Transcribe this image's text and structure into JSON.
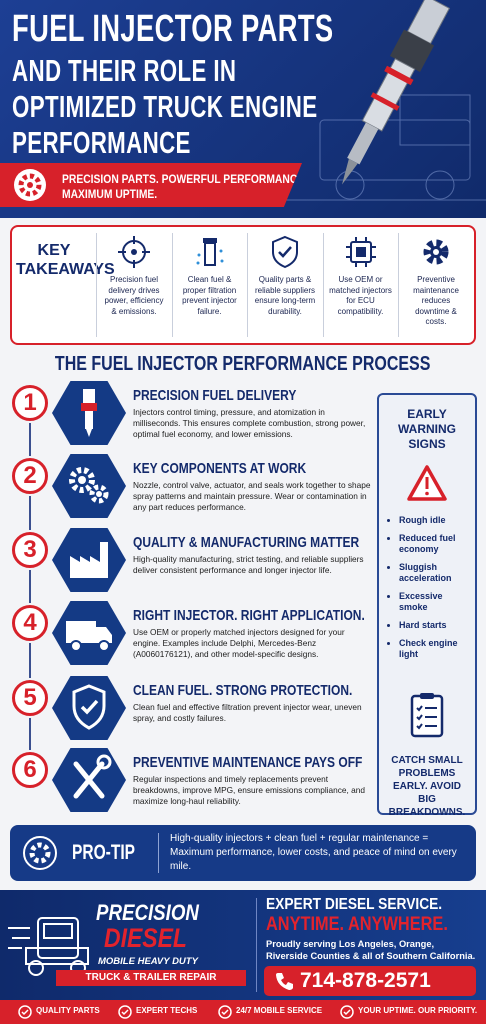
{
  "header": {
    "title_lines": [
      "FUEL INJECTOR PARTS",
      "AND THEIR ROLE IN",
      "OPTIMIZED TRUCK ENGINE",
      "PERFORMANCE"
    ],
    "tagline_lines": [
      "PRECISION PARTS. POWERFUL PERFORMANCE.",
      "MAXIMUM UPTIME."
    ]
  },
  "takeaways": {
    "title": "KEY TAKEAWAYS",
    "items": [
      "Precision fuel delivery drives power, efficiency & emissions.",
      "Clean fuel & proper filtration prevent injector failure.",
      "Quality parts & reliable suppliers ensure long-term durability.",
      "Use OEM or matched injectors for ECU compatibility.",
      "Preventive maintenance reduces downtime & costs."
    ]
  },
  "process": {
    "title": "THE FUEL INJECTOR PERFORMANCE PROCESS",
    "steps": [
      {
        "number": 1,
        "heading": "PRECISION FUEL DELIVERY",
        "text": "Injectors control timing, pressure, and atomization in milliseconds. This ensures complete combustion, strong power, optimal fuel economy, and lower emissions."
      },
      {
        "number": 2,
        "heading": "KEY COMPONENTS AT WORK",
        "text": "Nozzle, control valve, actuator, and seals work together to shape spray patterns and maintain pressure. Wear or contamination in any part reduces performance."
      },
      {
        "number": 3,
        "heading": "QUALITY & MANUFACTURING MATTER",
        "text": "High-quality manufacturing, strict testing, and reliable suppliers deliver consistent performance and longer injector life."
      },
      {
        "number": 4,
        "heading": "RIGHT INJECTOR. RIGHT APPLICATION.",
        "text": "Use OEM or properly matched injectors designed for your engine. Examples include Delphi, Mercedes-Benz (A0060176121), and other model-specific designs."
      },
      {
        "number": 5,
        "heading": "CLEAN FUEL. STRONG PROTECTION.",
        "text": "Clean fuel and effective filtration prevent injector wear, uneven spray, and costly failures."
      },
      {
        "number": 6,
        "heading": "PREVENTIVE MAINTENANCE PAYS OFF",
        "text": "Regular inspections and timely replacements prevent breakdowns, improve MPG, ensure emissions compliance, and maximize long-haul reliability."
      }
    ]
  },
  "warning": {
    "title": "EARLY WARNING SIGNS",
    "signs": [
      "Rough idle",
      "Reduced fuel economy",
      "Sluggish acceleration",
      "Excessive smoke",
      "Hard starts",
      "Check engine light"
    ],
    "closing": "CATCH SMALL PROBLEMS EARLY. AVOID BIG BREAKDOWNS."
  },
  "pro_tip": {
    "label": "PRO-TIP",
    "text": "High-quality injectors + clean fuel + regular maintenance = Maximum performance, lower costs, and peace of mind on every mile."
  },
  "footer": {
    "brand": "PRECISION",
    "brand_accent": "DIESEL",
    "subtitle": "MOBILE HEAVY DUTY",
    "service": "TRUCK & TRAILER REPAIR",
    "headline": "EXPERT DIESEL SERVICE.",
    "slogan": "ANYTIME. ANYWHERE.",
    "area": "Proudly serving Los Angeles, Orange, Riverside Counties & all of Southern California.",
    "phone": "714-878-2571"
  },
  "bottom_bar": [
    "QUALITY PARTS",
    "EXPERT TECHS",
    "24/7 MOBILE SERVICE",
    "YOUR UPTIME. OUR PRIORITY."
  ]
}
